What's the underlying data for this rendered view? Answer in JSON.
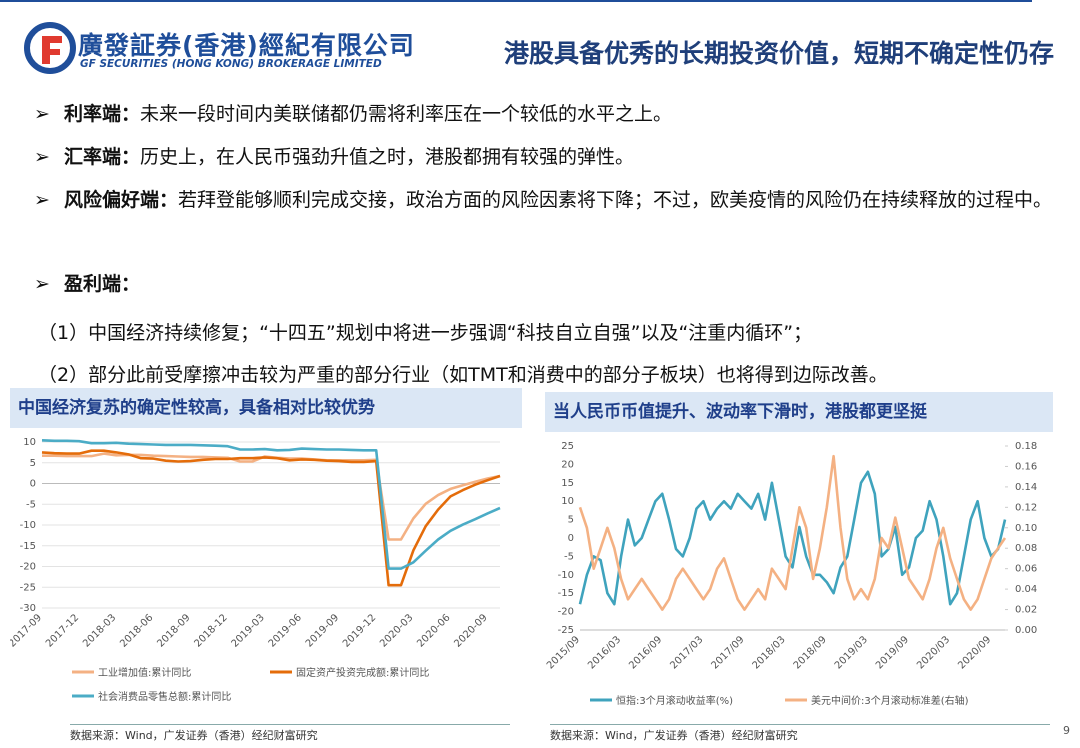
{
  "header": {
    "company_cn": "廣發証券(香港)經紀有限公司",
    "company_en": "GF SECURITIES (HONG KONG) BROKERAGE LIMITED",
    "title": "港股具备优秀的长期投资价值，短期不确定性仍存"
  },
  "bullets": [
    {
      "label": "利率端：",
      "text": "未来一段时间内美联储都仍需将利率压在一个较低的水平之上。"
    },
    {
      "label": "汇率端：",
      "text": "历史上，在人民币强劲升值之时，港股都拥有较强的弹性。"
    },
    {
      "label": "风险偏好端：",
      "text": "若拜登能够顺利完成交接，政治方面的风险因素将下降；不过，欧美疫情的风险仍在持续释放的过程中。"
    },
    {
      "label": "盈利端："
    }
  ],
  "subitems": [
    "（1）中国经济持续修复；“十四五”规划中将进一步强调“科技自立自强”以及“注重内循环”；",
    "（2）部分此前受摩擦冲击较为严重的部分行业（如TMT和消费中的部分子板块）也将得到边际改善。"
  ],
  "chart_data": [
    {
      "type": "line",
      "title": "中国经济复苏的确定性较高，具备相对比较优势",
      "categories": [
        "2017-09",
        null,
        null,
        "2017-12",
        null,
        null,
        "2018-03",
        null,
        null,
        "2018-06",
        null,
        null,
        "2018-09",
        null,
        null,
        "2018-12",
        null,
        null,
        "2019-03",
        null,
        null,
        "2019-06",
        null,
        null,
        "2019-09",
        null,
        null,
        "2019-12",
        null,
        null,
        "2020-03",
        null,
        null,
        "2020-06",
        null,
        null,
        "2020-09",
        null
      ],
      "series": [
        {
          "name": "工业增加值:累计同比",
          "color": "#f4b183",
          "values": [
            6.7,
            6.7,
            6.6,
            6.6,
            6.6,
            7.2,
            6.8,
            6.9,
            6.9,
            6.7,
            6.6,
            6.5,
            6.4,
            6.4,
            6.3,
            6.2,
            5.3,
            5.3,
            6.5,
            6.2,
            6.0,
            6.0,
            5.8,
            5.6,
            5.6,
            5.6,
            5.6,
            5.7,
            -13.5,
            -13.5,
            -8.4,
            -4.9,
            -2.8,
            -1.3,
            -0.4,
            0.4,
            1.2,
            1.8
          ]
        },
        {
          "name": "固定资产投资完成额:累计同比",
          "color": "#e46c0a",
          "values": [
            7.5,
            7.3,
            7.2,
            7.2,
            7.9,
            7.9,
            7.5,
            7.0,
            6.1,
            6.0,
            5.5,
            5.3,
            5.4,
            5.7,
            5.9,
            5.9,
            6.1,
            6.1,
            6.3,
            6.1,
            5.6,
            5.8,
            5.7,
            5.5,
            5.4,
            5.2,
            5.2,
            5.4,
            -24.5,
            -24.5,
            -16.1,
            -10.3,
            -6.3,
            -3.1,
            -1.6,
            -0.3,
            0.8,
            1.8
          ]
        },
        {
          "name": "社会消费品零售总额:累计同比",
          "color": "#4bacc6",
          "values": [
            10.4,
            10.3,
            10.3,
            10.2,
            9.7,
            9.7,
            9.8,
            9.6,
            9.5,
            9.4,
            9.3,
            9.3,
            9.3,
            9.2,
            9.1,
            9.0,
            8.2,
            8.2,
            8.3,
            8.0,
            8.1,
            8.4,
            8.3,
            8.2,
            8.2,
            8.1,
            8.0,
            8.0,
            -20.5,
            -20.5,
            -19.0,
            -16.2,
            -13.5,
            -11.4,
            -9.9,
            -8.6,
            -7.2,
            -5.9
          ]
        }
      ],
      "ylim": [
        -30,
        10
      ],
      "yticks": [
        10,
        5,
        0,
        -5,
        -10,
        -15,
        -20,
        -25,
        -30
      ],
      "grid": true,
      "source": "数据来源：Wind，广发证券（香港）经纪财富研究"
    },
    {
      "type": "line",
      "title": "当人民币币值提升、波动率下滑时，港股都更坚挺",
      "categories": [
        "2015/09",
        null,
        null,
        null,
        null,
        null,
        "2016/03",
        null,
        null,
        null,
        null,
        null,
        "2016/09",
        null,
        null,
        null,
        null,
        null,
        "2017/03",
        null,
        null,
        null,
        null,
        null,
        "2017/09",
        null,
        null,
        null,
        null,
        null,
        "2018/03",
        null,
        null,
        null,
        null,
        null,
        "2018/09",
        null,
        null,
        null,
        null,
        null,
        "2019/03",
        null,
        null,
        null,
        null,
        null,
        "2019/09",
        null,
        null,
        null,
        null,
        null,
        "2020/03",
        null,
        null,
        null,
        null,
        null,
        "2020/09",
        null,
        null
      ],
      "series": [
        {
          "name": "恒指:3个月滚动收益率(%)",
          "color": "#3fa3bd",
          "values": [
            -18,
            -10,
            -5,
            -6,
            -15,
            -18,
            -5,
            5,
            -2,
            0,
            5,
            10,
            12,
            5,
            -3,
            -5,
            0,
            8,
            10,
            5,
            8,
            10,
            8,
            12,
            10,
            8,
            12,
            5,
            15,
            5,
            -5,
            -8,
            3,
            -5,
            -10,
            -10,
            -12,
            -15,
            -8,
            -5,
            5,
            15,
            18,
            12,
            -5,
            -3,
            3,
            -10,
            -8,
            0,
            2,
            10,
            5,
            -5,
            -18,
            -15,
            -5,
            5,
            10,
            0,
            -5,
            -3,
            5
          ]
        },
        {
          "name": "美元中间价:3个月滚动标准差(右轴)",
          "color": "#f4b183",
          "axis": "y2",
          "values": [
            0.12,
            0.1,
            0.06,
            0.08,
            0.1,
            0.08,
            0.05,
            0.03,
            0.04,
            0.05,
            0.04,
            0.03,
            0.02,
            0.03,
            0.05,
            0.06,
            0.05,
            0.04,
            0.03,
            0.04,
            0.06,
            0.07,
            0.05,
            0.03,
            0.02,
            0.03,
            0.04,
            0.03,
            0.06,
            0.05,
            0.04,
            0.08,
            0.12,
            0.1,
            0.05,
            0.08,
            0.12,
            0.17,
            0.1,
            0.05,
            0.03,
            0.04,
            0.03,
            0.05,
            0.09,
            0.08,
            0.11,
            0.08,
            0.05,
            0.04,
            0.03,
            0.05,
            0.08,
            0.1,
            0.07,
            0.05,
            0.03,
            0.02,
            0.03,
            0.05,
            0.07,
            0.08,
            0.09
          ]
        }
      ],
      "ylim": [
        -25,
        25
      ],
      "yticks": [
        25,
        20,
        15,
        10,
        5,
        0,
        -5,
        -10,
        -15,
        -20,
        -25
      ],
      "y2lim": [
        0,
        0.18
      ],
      "y2ticks": [
        {
          "value": 0.18,
          "label": "0.18"
        },
        {
          "value": 0.16,
          "label": "0.16"
        },
        {
          "value": 0.14,
          "label": "0.14"
        },
        {
          "value": 0.12,
          "label": "0.12"
        },
        {
          "value": 0.1,
          "label": "0.10"
        },
        {
          "value": 0.08,
          "label": "0.08"
        },
        {
          "value": 0.06,
          "label": "0.06"
        },
        {
          "value": 0.04,
          "label": "0.04"
        },
        {
          "value": 0.02,
          "label": "0.02"
        },
        {
          "value": 0,
          "label": "0.00"
        }
      ],
      "grid": false,
      "source": "数据来源：Wind，广发证券（香港）经纪财富研究"
    }
  ],
  "page_number": "9"
}
